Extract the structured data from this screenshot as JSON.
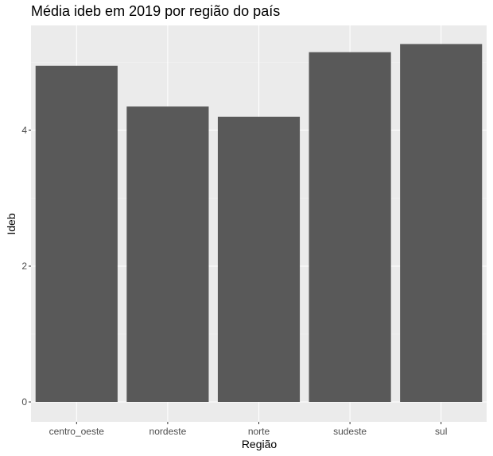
{
  "chart_data": {
    "type": "bar",
    "title": "Média ideb em 2019 por região do país",
    "xlabel": "Região",
    "ylabel": "Ideb",
    "categories": [
      "centro_oeste",
      "nordeste",
      "norte",
      "sudeste",
      "sul"
    ],
    "values": [
      4.95,
      4.35,
      4.2,
      5.15,
      5.27
    ],
    "ylim": [
      0,
      5.53
    ],
    "yticks": [
      0,
      2,
      4
    ],
    "grid": true,
    "colors": {
      "bar": "#595959",
      "panel": "#ebebeb",
      "grid_major": "#ffffff",
      "grid_minor": "#f5f5f5",
      "tick_text": "#4d4d4d",
      "tick_mark": "#333333"
    }
  }
}
